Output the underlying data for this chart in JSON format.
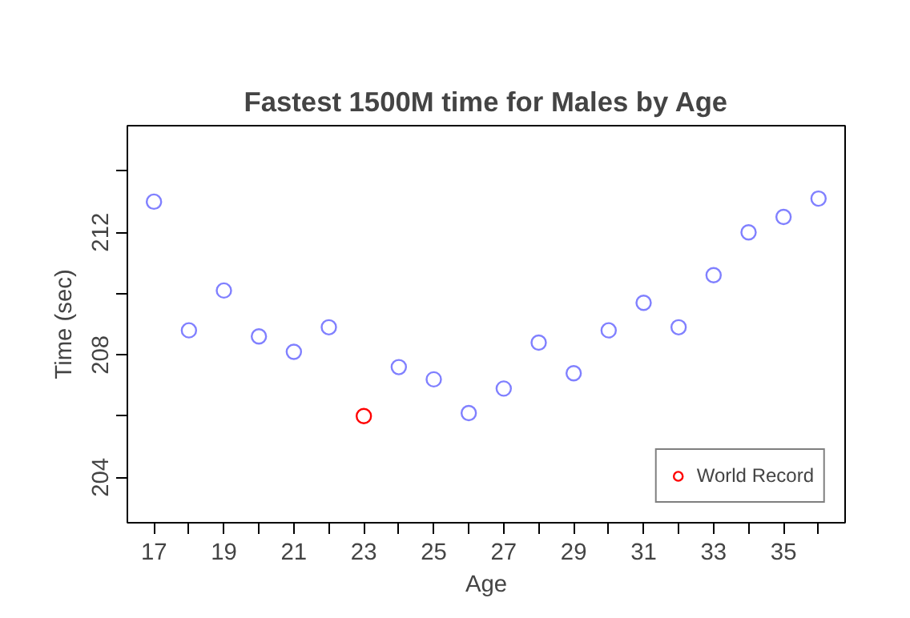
{
  "chart_data": {
    "type": "scatter",
    "title": "Fastest 1500M time for Males by Age",
    "xlabel": "Age",
    "ylabel": "Time (sec)",
    "x": [
      17,
      18,
      19,
      20,
      21,
      22,
      23,
      24,
      25,
      26,
      27,
      28,
      29,
      30,
      31,
      32,
      33,
      34,
      35,
      36
    ],
    "series": [
      {
        "color": "#8080ff",
        "values": [
          213.0,
          208.8,
          210.1,
          208.6,
          208.1,
          208.9,
          null,
          207.6,
          207.2,
          206.1,
          206.9,
          208.4,
          207.4,
          208.8,
          209.7,
          208.9,
          210.6,
          212.0,
          212.5,
          213.1
        ]
      },
      {
        "name": "World Record",
        "color": "#ff0000",
        "x": [
          23
        ],
        "values": [
          206.0
        ]
      }
    ],
    "xlim": [
      16.24,
      36.76
    ],
    "ylim": [
      202.52,
      215.48
    ],
    "xticks": [
      17,
      {
        "value": 18,
        "label": null
      },
      19,
      {
        "value": 20,
        "label": null
      },
      21,
      {
        "value": 22,
        "label": null
      },
      23,
      {
        "value": 24,
        "label": null
      },
      25,
      {
        "value": 26,
        "label": null
      },
      27,
      {
        "value": 28,
        "label": null
      },
      29,
      {
        "value": 30,
        "label": null
      },
      31,
      {
        "value": 32,
        "label": null
      },
      33,
      {
        "value": 34,
        "label": null
      },
      35,
      {
        "value": 36,
        "label": null
      }
    ],
    "yticks": [
      204,
      {
        "value": 206,
        "label": null
      },
      208,
      {
        "value": 210,
        "label": null
      },
      212,
      {
        "value": 214,
        "label": null
      }
    ],
    "marker": "circle",
    "grid": false,
    "legend": "bottom right"
  }
}
